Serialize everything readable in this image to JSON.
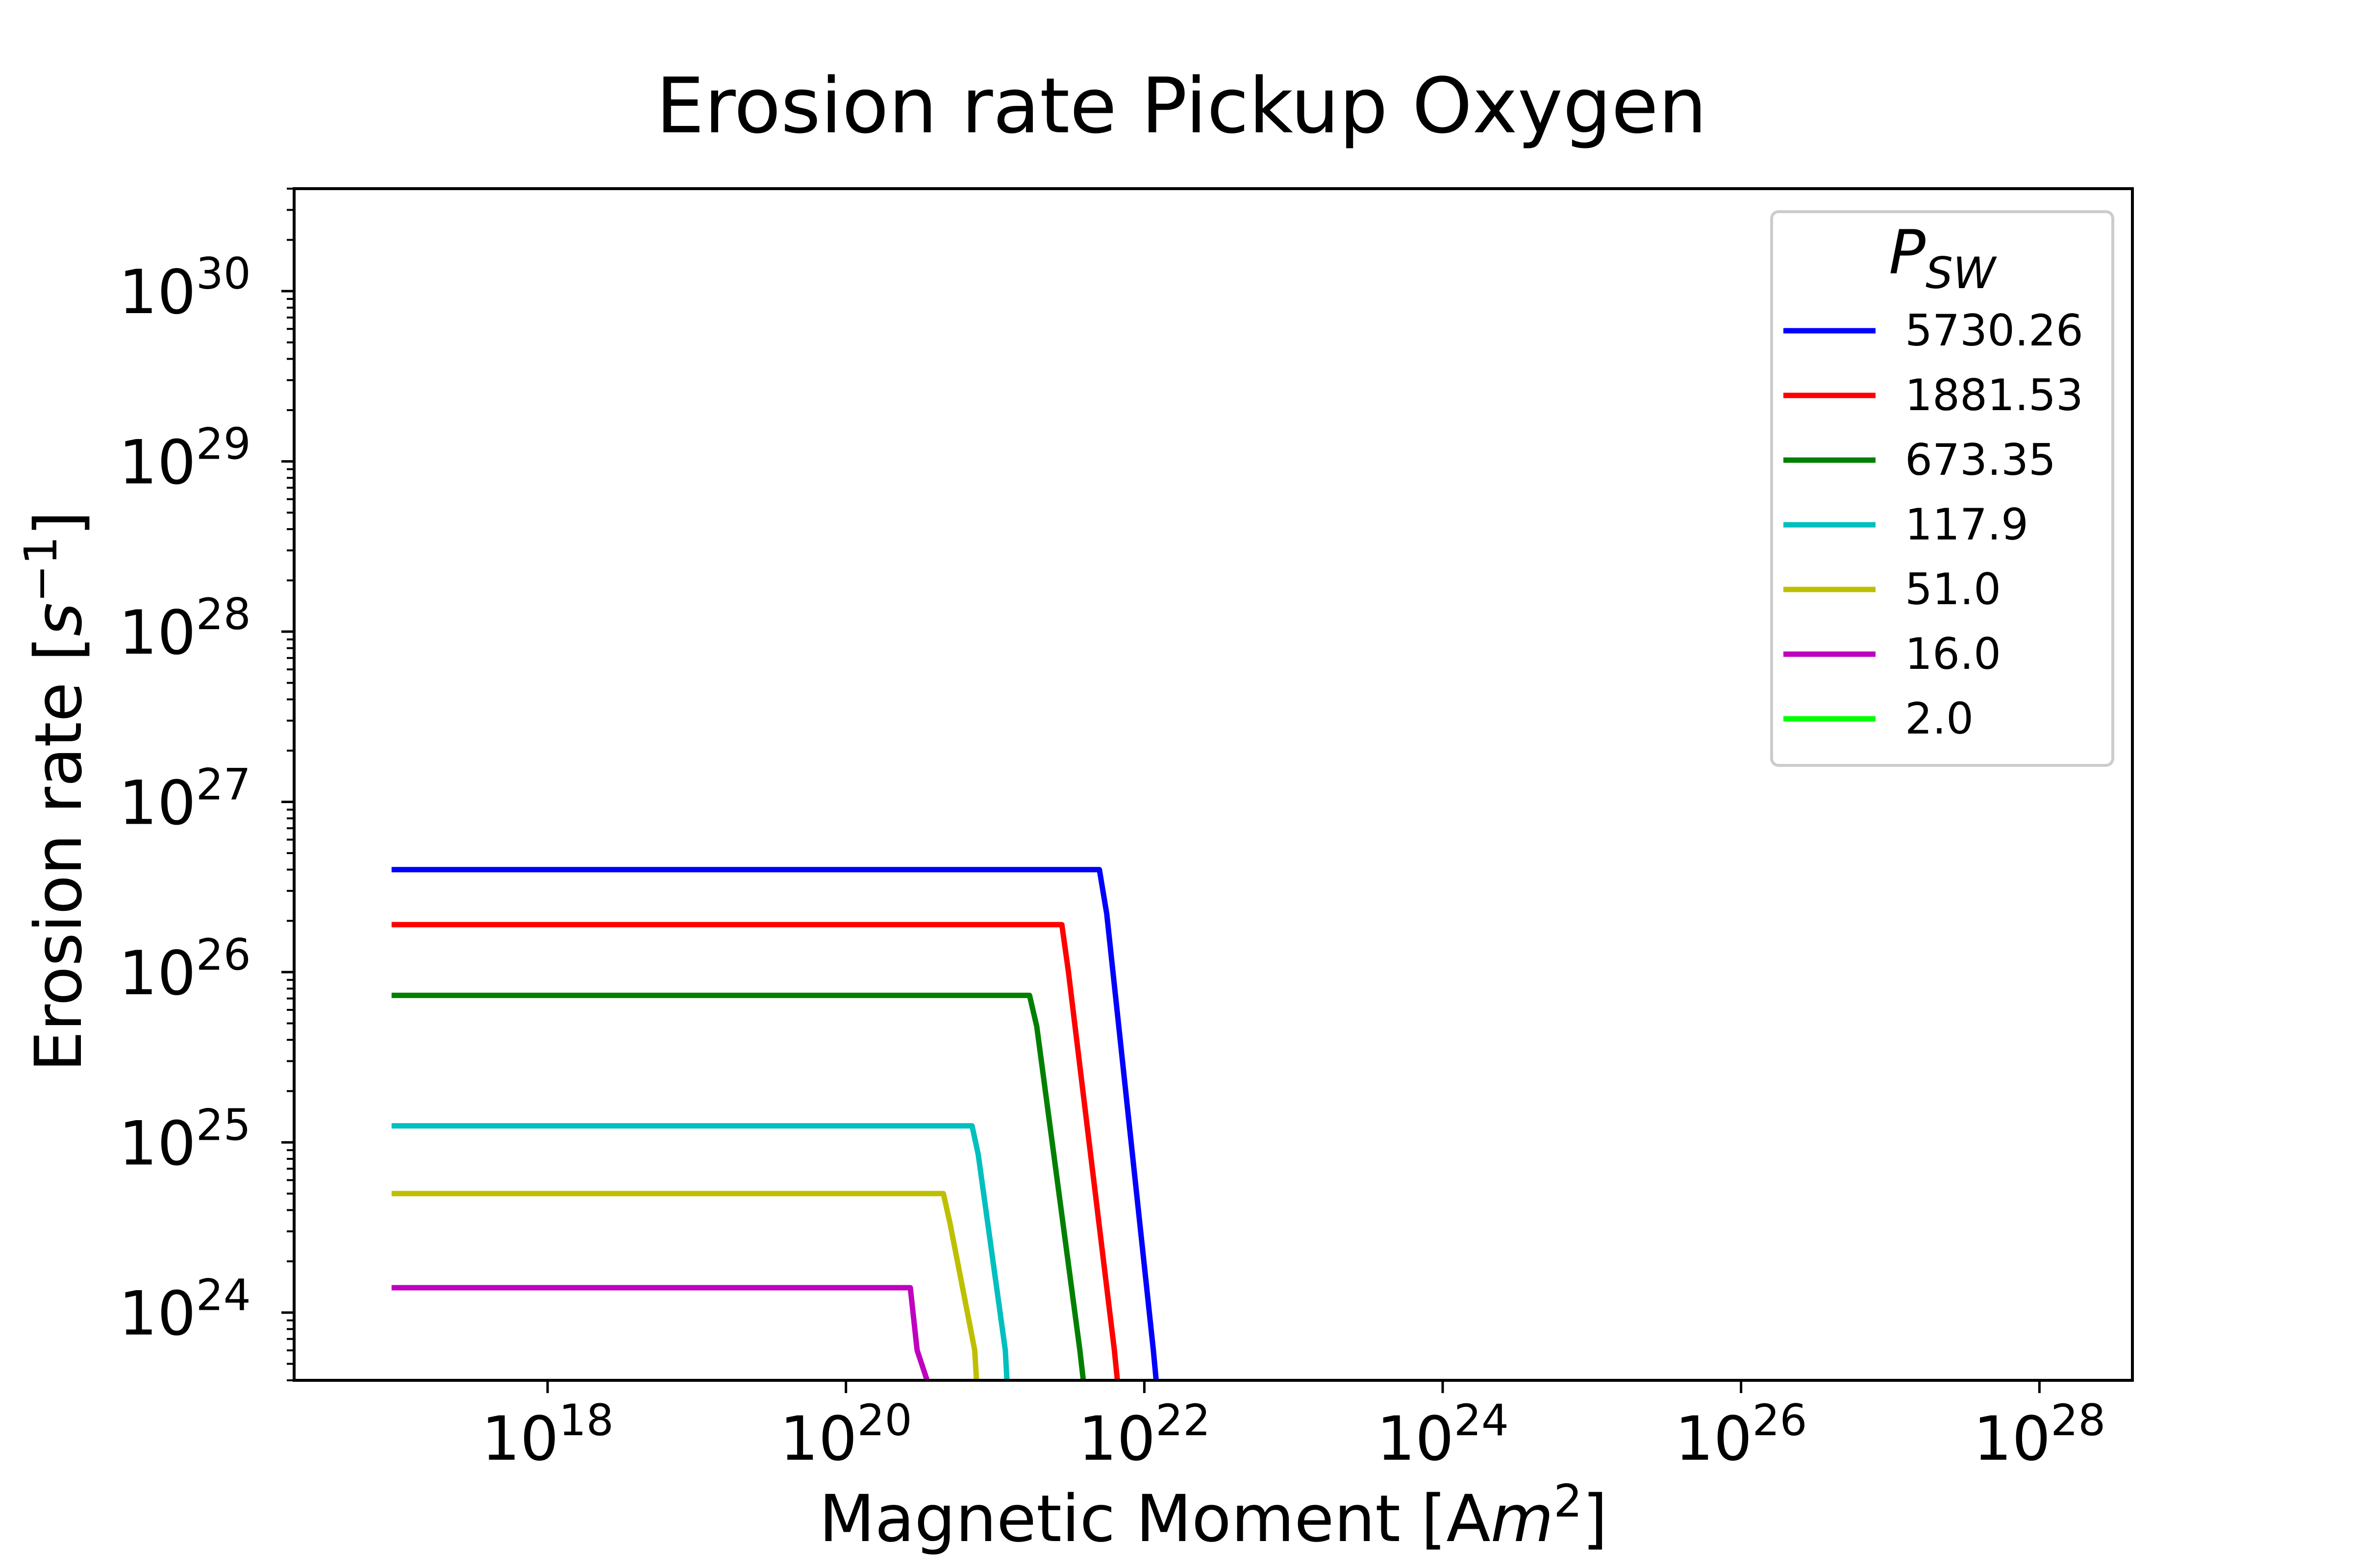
{
  "chart_data": {
    "type": "line",
    "title": "Erosion rate Pickup Oxygen",
    "xlabel": {
      "main": "Magnetic Moment [A",
      "math": "m",
      "sup": "2",
      "end": "]"
    },
    "ylabel": {
      "main": "Erosion rate [",
      "math": "s",
      "sup": "−1",
      "end": "]"
    },
    "x_scale": "log",
    "y_scale": "log",
    "xlim": [
      2e+16,
      4.2e+28
    ],
    "ylim": [
      4e+23,
      4e+30
    ],
    "x_ticks": [
      {
        "base": "10",
        "exp": "18",
        "value": 1e+18
      },
      {
        "base": "10",
        "exp": "20",
        "value": 1e+20
      },
      {
        "base": "10",
        "exp": "22",
        "value": 1e+22
      },
      {
        "base": "10",
        "exp": "24",
        "value": 1e+24
      },
      {
        "base": "10",
        "exp": "26",
        "value": 1e+26
      },
      {
        "base": "10",
        "exp": "28",
        "value": 1e+28
      }
    ],
    "y_ticks": [
      {
        "base": "10",
        "exp": "24",
        "value": 1e+24
      },
      {
        "base": "10",
        "exp": "25",
        "value": 1e+25
      },
      {
        "base": "10",
        "exp": "26",
        "value": 1e+26
      },
      {
        "base": "10",
        "exp": "27",
        "value": 1e+27
      },
      {
        "base": "10",
        "exp": "28",
        "value": 1e+28
      },
      {
        "base": "10",
        "exp": "29",
        "value": 1e+29
      },
      {
        "base": "10",
        "exp": "30",
        "value": 1e+30
      }
    ],
    "grid": false,
    "legend": {
      "title_main": "P",
      "title_sub": "SW",
      "placement": "top-right"
    },
    "series": [
      {
        "name": "5730.26",
        "color": "#0000ff",
        "x": [
          9e+16,
          5e+21,
          5.6e+21,
          1.15e+22,
          1.2e+22
        ],
        "y": [
          4e+26,
          4e+26,
          2.2e+26,
          6e+23,
          4e+23
        ]
      },
      {
        "name": "1881.53",
        "color": "#ff0000",
        "x": [
          9e+16,
          2.8e+21,
          3.1e+21,
          6.3e+21,
          6.6e+21
        ],
        "y": [
          1.9e+26,
          1.9e+26,
          1e+26,
          6e+23,
          4e+23
        ]
      },
      {
        "name": "673.35",
        "color": "#008000",
        "x": [
          9e+16,
          1.7e+21,
          1.9e+21,
          3.7e+21,
          3.9e+21
        ],
        "y": [
          7.3e+25,
          7.3e+25,
          4.8e+25,
          6e+23,
          4e+23
        ]
      },
      {
        "name": "117.9",
        "color": "#00bfbf",
        "x": [
          9e+16,
          7e+20,
          7.7e+20,
          1.17e+21,
          1.2e+21
        ],
        "y": [
          1.25e+25,
          1.25e+25,
          8.5e+24,
          6e+23,
          4e+23
        ]
      },
      {
        "name": "51.0",
        "color": "#bfbf00",
        "x": [
          9e+16,
          4.5e+20,
          5e+20,
          7.3e+20,
          7.5e+20
        ],
        "y": [
          5e+24,
          5e+24,
          3.3e+24,
          6e+23,
          4e+23
        ]
      },
      {
        "name": "16.0",
        "color": "#bf00bf",
        "x": [
          9e+16,
          2.7e+20,
          3e+20,
          3.5e+20
        ],
        "y": [
          1.4e+24,
          1.4e+24,
          6e+23,
          4e+23
        ]
      },
      {
        "name": "2.0",
        "color": "#00ff00",
        "x": [],
        "y": []
      }
    ]
  }
}
